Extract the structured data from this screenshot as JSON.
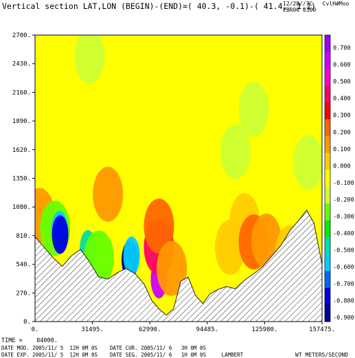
{
  "header": {
    "title": "Vertical section LAT,LON (BEGIN)-(END)=( 40.3, -0.1)-( 41.4,  1.1)",
    "right_line1": "12/28//7C   CvlH#Moo",
    "right_line2": "EBR06 0300"
  },
  "footer": {
    "time": "TIME =    84000.",
    "line2": "DATE MOD. 2005/11/ 5  12H 0M 0S    DATE CUR. 2005/11/ 6   3H 0M 0S",
    "line3": "DATE EXP. 2005/11/ 5  12H 0M 0S    DATE SEG. 2005/11/ 6   1H 0M 0S     LAMBERT",
    "units": "WT METERS/SECOND"
  },
  "chart_data": {
    "type": "heatmap",
    "title": "Vertical section LAT,LON (BEGIN)-(END)=( 40.3, -0.1)-( 41.4,  1.1)",
    "xlabel": "",
    "ylabel": "",
    "xlim": [
      0,
      157475
    ],
    "ylim": [
      0,
      2700
    ],
    "x_ticks": [
      "31495.",
      "62990.",
      "94485.",
      "125980.",
      "157475."
    ],
    "x_tick_values": [
      31495,
      62990,
      94485,
      125980,
      157475
    ],
    "y_ticks": [
      "0.",
      "270.",
      "540.",
      "810.",
      "1080.",
      "1350.",
      "1620.",
      "1890.",
      "2160.",
      "2430.",
      "2700."
    ],
    "y_tick_values": [
      0,
      270,
      540,
      810,
      1080,
      1350,
      1620,
      1890,
      2160,
      2430,
      2700
    ],
    "colorbar": {
      "labels": [
        "0.700",
        "0.600",
        "0.500",
        "0.400",
        "0.300",
        "0.200",
        "0.100",
        "0.000",
        "-0.100",
        "-0.200",
        "-0.300",
        "-0.400",
        "-0.500",
        "-0.600",
        "-0.700",
        "-0.800",
        "-0.900"
      ],
      "colors": [
        "#9900ff",
        "#cc00ff",
        "#ff00cc",
        "#ff0066",
        "#ff0000",
        "#ff6600",
        "#ff9900",
        "#ffcc00",
        "#ffff00",
        "#ccff33",
        "#66ff00",
        "#00ee00",
        "#00ddaa",
        "#00ccff",
        "#0066ff",
        "#0000dd",
        "#000099"
      ]
    },
    "background_value": -0.1,
    "blobs": [
      {
        "x": 2500,
        "z": 1000,
        "value": 0.1
      },
      {
        "x": 11000,
        "z": 880,
        "value": -0.3
      },
      {
        "x": 13500,
        "z": 860,
        "value": -0.6
      },
      {
        "x": 13800,
        "z": 820,
        "value": -0.8
      },
      {
        "x": 40000,
        "z": 1200,
        "value": 0.1
      },
      {
        "x": 29000,
        "z": 680,
        "value": -0.5
      },
      {
        "x": 35000,
        "z": 600,
        "value": -0.3
      },
      {
        "x": 52000,
        "z": 580,
        "value": -0.9
      },
      {
        "x": 53000,
        "z": 620,
        "value": -0.6
      },
      {
        "x": 68000,
        "z": 400,
        "value": 0.6
      },
      {
        "x": 68000,
        "z": 700,
        "value": 0.4
      },
      {
        "x": 68000,
        "z": 900,
        "value": 0.2
      },
      {
        "x": 75000,
        "z": 500,
        "value": 0.1
      },
      {
        "x": 107000,
        "z": 700,
        "value": 0.0
      },
      {
        "x": 115000,
        "z": 950,
        "value": 0.0
      },
      {
        "x": 120000,
        "z": 750,
        "value": 0.2
      },
      {
        "x": 127000,
        "z": 760,
        "value": 0.1
      },
      {
        "x": 140000,
        "z": 650,
        "value": 0.0
      },
      {
        "x": 110000,
        "z": 1600,
        "value": -0.2
      },
      {
        "x": 150000,
        "z": 1500,
        "value": -0.2
      },
      {
        "x": 30000,
        "z": 2500,
        "value": -0.2
      },
      {
        "x": 62000,
        "z": 2000,
        "value": -0.1
      },
      {
        "x": 120000,
        "z": 2000,
        "value": -0.2
      }
    ],
    "terrain": [
      [
        0,
        800
      ],
      [
        5000,
        700
      ],
      [
        10000,
        600
      ],
      [
        15000,
        520
      ],
      [
        20000,
        620
      ],
      [
        25000,
        680
      ],
      [
        30000,
        560
      ],
      [
        35000,
        420
      ],
      [
        40000,
        400
      ],
      [
        45000,
        460
      ],
      [
        50000,
        500
      ],
      [
        55000,
        450
      ],
      [
        60000,
        350
      ],
      [
        64000,
        200
      ],
      [
        68000,
        120
      ],
      [
        72000,
        60
      ],
      [
        76000,
        120
      ],
      [
        80000,
        380
      ],
      [
        84000,
        420
      ],
      [
        88000,
        250
      ],
      [
        92000,
        170
      ],
      [
        96000,
        260
      ],
      [
        100000,
        300
      ],
      [
        105000,
        330
      ],
      [
        110000,
        310
      ],
      [
        115000,
        390
      ],
      [
        120000,
        450
      ],
      [
        125000,
        520
      ],
      [
        130000,
        620
      ],
      [
        135000,
        720
      ],
      [
        140000,
        860
      ],
      [
        145000,
        960
      ],
      [
        149000,
        1050
      ],
      [
        153000,
        930
      ],
      [
        157475,
        540
      ]
    ]
  }
}
